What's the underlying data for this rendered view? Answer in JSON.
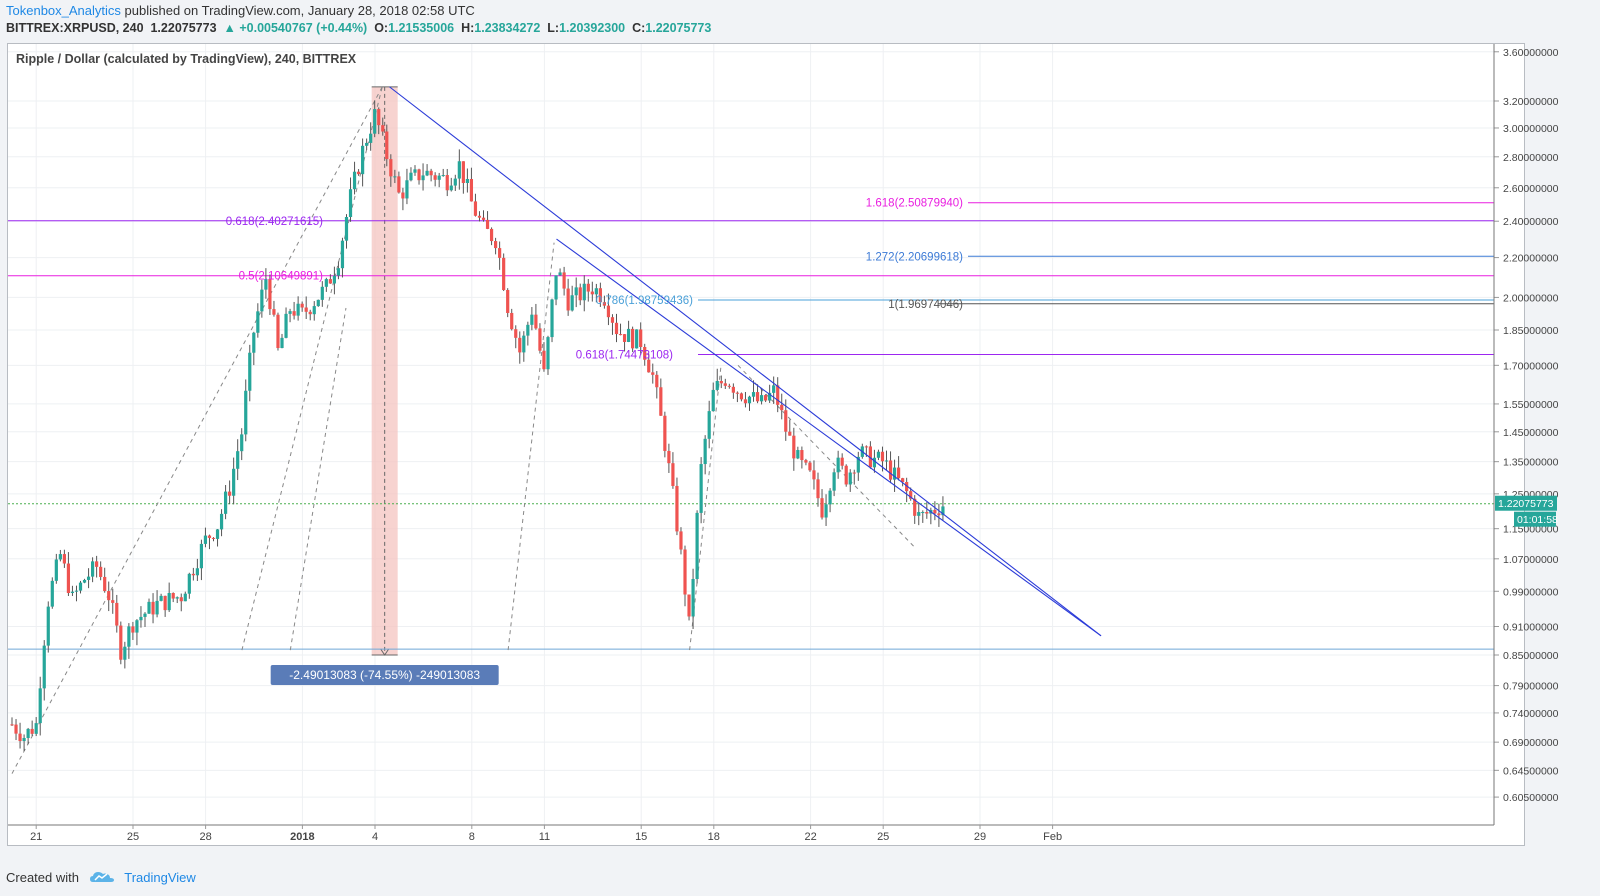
{
  "header": {
    "author": "Tokenbox_Analytics",
    "published_text": "published on TradingView.com, January 28, 2018 02:58 UTC",
    "symbol": "BITTREX:XRPUSD, 240",
    "last": "1.22075773",
    "change": "+0.00540767 (+0.44%)",
    "ohlc": [
      {
        "label": "O:",
        "value": "1.21535006"
      },
      {
        "label": "H:",
        "value": "1.23834272"
      },
      {
        "label": "L:",
        "value": "1.20392300"
      },
      {
        "label": "C:",
        "value": "1.22075773"
      }
    ]
  },
  "footer": {
    "created_with": "Created with",
    "brand": "TradingView"
  },
  "colors": {
    "up": "#26a69a",
    "down": "#ef5350",
    "trendline": "#2b3bd8",
    "fib_magenta": "#e91ee0",
    "fib_purple": "#9c27f0",
    "fib_blue": "#3d7bd6",
    "fib_lightblue": "#4aa0d8",
    "measure_bg": "#f4c4c0",
    "price_line": "#4caf50"
  },
  "chart_data": {
    "type": "candlestick",
    "title": "Ripple / Dollar (calculated by TradingView), 240, BITTREX",
    "y_axis_scale": "log",
    "y_ticks": [
      "0.60500000",
      "0.64500000",
      "0.69000000",
      "0.74000000",
      "0.79000000",
      "0.85000000",
      "0.91000000",
      "0.99000000",
      "1.07000000",
      "1.15000000",
      "1.25000000",
      "1.35000000",
      "1.45000000",
      "1.55000000",
      "1.70000000",
      "1.85000000",
      "2.00000000",
      "2.20000000",
      "2.40000000",
      "2.60000000",
      "2.80000000",
      "3.00000000",
      "3.20000000",
      "3.60000000"
    ],
    "x_range": [
      "2017-12-20",
      "2018-02-03"
    ],
    "x_ticks": [
      {
        "date": "2017-12-21",
        "label": "21"
      },
      {
        "date": "2017-12-25",
        "label": "25"
      },
      {
        "date": "2017-12-28",
        "label": "28"
      },
      {
        "date": "2018-01-01",
        "label": "2018"
      },
      {
        "date": "2018-01-04",
        "label": "4"
      },
      {
        "date": "2018-01-08",
        "label": "8"
      },
      {
        "date": "2018-01-11",
        "label": "11"
      },
      {
        "date": "2018-01-15",
        "label": "15"
      },
      {
        "date": "2018-01-18",
        "label": "18"
      },
      {
        "date": "2018-01-22",
        "label": "22"
      },
      {
        "date": "2018-01-25",
        "label": "25"
      },
      {
        "date": "2018-01-29",
        "label": "29"
      },
      {
        "date": "2018-02-01",
        "label": "Feb"
      }
    ],
    "price_path": [
      [
        "2017-12-20",
        0.72
      ],
      [
        "2017-12-20.5",
        0.7
      ],
      [
        "2017-12-21",
        0.72
      ],
      [
        "2017-12-21.5",
        0.97
      ],
      [
        "2017-12-22",
        1.08
      ],
      [
        "2017-12-22.5",
        0.97
      ],
      [
        "2017-12-23",
        1.02
      ],
      [
        "2017-12-23.5",
        1.05
      ],
      [
        "2017-12-24",
        0.98
      ],
      [
        "2017-12-24.5",
        0.86
      ],
      [
        "2017-12-25",
        0.92
      ],
      [
        "2017-12-26",
        0.96
      ],
      [
        "2017-12-27",
        0.98
      ],
      [
        "2017-12-27.5",
        1.05
      ],
      [
        "2017-12-28",
        1.12
      ],
      [
        "2017-12-28.5",
        1.16
      ],
      [
        "2017-12-29",
        1.27
      ],
      [
        "2017-12-29.5",
        1.45
      ],
      [
        "2017-12-30",
        1.85
      ],
      [
        "2017-12-30.5",
        2.1
      ],
      [
        "2017-12-31",
        1.75
      ],
      [
        "2017-12-31.5",
        1.95
      ],
      [
        "2018-01-01",
        1.92
      ],
      [
        "2018-01-02",
        2.05
      ],
      [
        "2018-01-02.5",
        2.2
      ],
      [
        "2018-01-03",
        2.55
      ],
      [
        "2018-01-03.5",
        2.85
      ],
      [
        "2018-01-04",
        3.1
      ],
      [
        "2018-01-04.5",
        2.8
      ],
      [
        "2018-01-05",
        2.55
      ],
      [
        "2018-01-05.5",
        2.65
      ],
      [
        "2018-01-06",
        2.7
      ],
      [
        "2018-01-07",
        2.65
      ],
      [
        "2018-01-07.5",
        2.75
      ],
      [
        "2018-01-08",
        2.5
      ],
      [
        "2018-01-08.5",
        2.35
      ],
      [
        "2018-01-09",
        2.3
      ],
      [
        "2018-01-09.5",
        1.95
      ],
      [
        "2018-01-10",
        1.75
      ],
      [
        "2018-01-10.5",
        1.95
      ],
      [
        "2018-01-11",
        1.65
      ],
      [
        "2018-01-11.5",
        2.15
      ],
      [
        "2018-01-12",
        1.98
      ],
      [
        "2018-01-13",
        2.05
      ],
      [
        "2018-01-13.5",
        2.0
      ],
      [
        "2018-01-14",
        1.85
      ],
      [
        "2018-01-14.5",
        1.82
      ],
      [
        "2018-01-15",
        1.8
      ],
      [
        "2018-01-15.5",
        1.65
      ],
      [
        "2018-01-16",
        1.4
      ],
      [
        "2018-01-16.5",
        1.15
      ],
      [
        "2018-01-17",
        0.9
      ],
      [
        "2018-01-17.5",
        1.35
      ],
      [
        "2018-01-18",
        1.6
      ],
      [
        "2018-01-18.5",
        1.65
      ],
      [
        "2018-01-19",
        1.6
      ],
      [
        "2018-01-20",
        1.55
      ],
      [
        "2018-01-20.5",
        1.6
      ],
      [
        "2018-01-21",
        1.45
      ],
      [
        "2018-01-21.5",
        1.35
      ],
      [
        "2018-01-22",
        1.3
      ],
      [
        "2018-01-22.5",
        1.2
      ],
      [
        "2018-01-23",
        1.35
      ],
      [
        "2018-01-23.5",
        1.3
      ],
      [
        "2018-01-24",
        1.38
      ],
      [
        "2018-01-24.5",
        1.36
      ],
      [
        "2018-01-25",
        1.35
      ],
      [
        "2018-01-25.5",
        1.3
      ],
      [
        "2018-01-26",
        1.25
      ],
      [
        "2018-01-26.5",
        1.18
      ],
      [
        "2018-01-27",
        1.2
      ],
      [
        "2018-01-27.5",
        1.22
      ]
    ],
    "fib_labels": [
      {
        "label": "0.618(2.40271615)",
        "price": 2.40271615,
        "color": "#9c27f0"
      },
      {
        "label": "0.5(2.10649891)",
        "price": 2.10649891,
        "color": "#e91ee0"
      },
      {
        "label": "1.618(2.50879940)",
        "price": 2.5087994,
        "color": "#e91ee0"
      },
      {
        "label": "1.272(2.20699618)",
        "price": 2.20699618,
        "color": "#3d7bd6"
      },
      {
        "label": "0.786(1.98759436)",
        "price": 1.98759436,
        "color": "#4aa0d8"
      },
      {
        "label": "1(1.96974046)",
        "price": 1.96974046,
        "color": "#555555"
      },
      {
        "label": "0.618(1.74473108)",
        "price": 1.74473108,
        "color": "#9c27f0"
      }
    ],
    "support_price": 0.862,
    "last_price": "1.22075773",
    "countdown": "01:01:58",
    "measure": {
      "from": [
        "2018-01-04.4",
        3.31
      ],
      "to": [
        "2018-01-04.4",
        0.85
      ],
      "label": "-2.49013083 (-74.55%) -249013083"
    },
    "trendlines": [
      {
        "from": [
          "2018-01-04.6",
          3.31
        ],
        "to": [
          "2018-02-03",
          0.89
        ]
      },
      {
        "from": [
          "2018-01-11.5",
          2.3
        ],
        "to": [
          "2018-02-03",
          0.89
        ]
      }
    ]
  }
}
